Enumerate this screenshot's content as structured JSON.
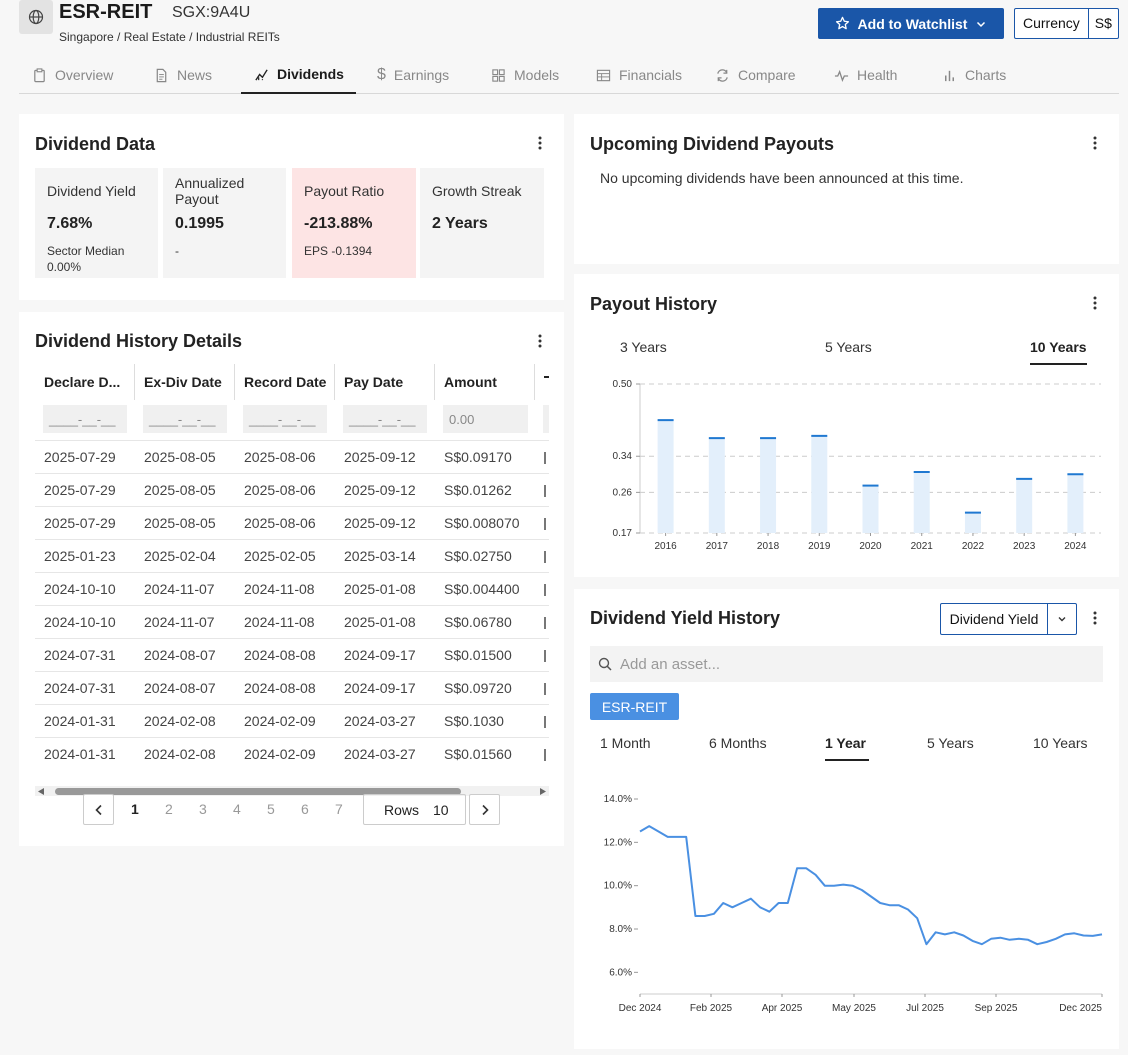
{
  "header": {
    "ticker": "ESR-REIT",
    "exchange": "SGX:9A4U",
    "breadcrumb": "Singapore / Real Estate / Industrial REITs",
    "watchlist_label": "Add to Watchlist",
    "currency_label": "Currency",
    "currency_value": "S$"
  },
  "tabs": [
    {
      "label": "Overview",
      "icon": "clipboard-icon"
    },
    {
      "label": "News",
      "icon": "document-icon"
    },
    {
      "label": "Dividends",
      "icon": "dividends-icon"
    },
    {
      "label": "Earnings",
      "icon": "dollar-icon"
    },
    {
      "label": "Models",
      "icon": "grid-icon"
    },
    {
      "label": "Financials",
      "icon": "table-icon"
    },
    {
      "label": "Compare",
      "icon": "compare-icon"
    },
    {
      "label": "Health",
      "icon": "pulse-icon"
    },
    {
      "label": "Charts",
      "icon": "bar-chart-icon"
    }
  ],
  "dividend_data": {
    "title": "Dividend Data",
    "tiles": [
      {
        "label": "Dividend Yield",
        "value": "7.68%",
        "sub": "Sector Median 0.00%"
      },
      {
        "label": "Annualized Payout",
        "value": "0.1995",
        "sub": "-"
      },
      {
        "label": "Payout Ratio",
        "value": "-213.88%",
        "sub": "EPS -0.1394"
      },
      {
        "label": "Growth Streak",
        "value": "2 Years",
        "sub": ""
      }
    ]
  },
  "history_details": {
    "title": "Dividend History Details",
    "columns": [
      "Declare D...",
      "Ex-Div Date",
      "Record Date",
      "Pay Date",
      "Amount"
    ],
    "filters": [
      "____-__-__",
      "____-__-__",
      "____-__-__",
      "____-__-__",
      "0.00"
    ],
    "rows": [
      [
        "2025-07-29",
        "2025-08-05",
        "2025-08-06",
        "2025-09-12",
        "S$0.09170"
      ],
      [
        "2025-07-29",
        "2025-08-05",
        "2025-08-06",
        "2025-09-12",
        "S$0.01262"
      ],
      [
        "2025-07-29",
        "2025-08-05",
        "2025-08-06",
        "2025-09-12",
        "S$0.008070"
      ],
      [
        "2025-01-23",
        "2025-02-04",
        "2025-02-05",
        "2025-03-14",
        "S$0.02750"
      ],
      [
        "2024-10-10",
        "2024-11-07",
        "2024-11-08",
        "2025-01-08",
        "S$0.004400"
      ],
      [
        "2024-10-10",
        "2024-11-07",
        "2024-11-08",
        "2025-01-08",
        "S$0.06780"
      ],
      [
        "2024-07-31",
        "2024-08-07",
        "2024-08-08",
        "2024-09-17",
        "S$0.01500"
      ],
      [
        "2024-07-31",
        "2024-08-07",
        "2024-08-08",
        "2024-09-17",
        "S$0.09720"
      ],
      [
        "2024-01-31",
        "2024-02-08",
        "2024-02-09",
        "2024-03-27",
        "S$0.1030"
      ],
      [
        "2024-01-31",
        "2024-02-08",
        "2024-02-09",
        "2024-03-27",
        "S$0.01560"
      ]
    ],
    "pages": [
      "1",
      "2",
      "3",
      "4",
      "5",
      "6",
      "7"
    ],
    "current_page": "1",
    "rows_label": "Rows",
    "rows_value": "10"
  },
  "upcoming": {
    "title": "Upcoming Dividend Payouts",
    "message": "No upcoming dividends have been announced at this time."
  },
  "payout_history": {
    "title": "Payout History",
    "ranges": [
      "3 Years",
      "5 Years",
      "10 Years"
    ],
    "active_range": "10 Years"
  },
  "yield_history": {
    "title": "Dividend Yield History",
    "dropdown": "Dividend Yield",
    "search_placeholder": "Add an asset...",
    "asset_chip": "ESR-REIT",
    "ranges": [
      "1 Month",
      "6 Months",
      "1 Year",
      "5 Years",
      "10 Years"
    ],
    "active_range": "1 Year"
  },
  "colors": {
    "primary": "#1a56a8",
    "bar": "#1f78d1",
    "bar_fill": "#e3effb",
    "line": "#4a90e2",
    "chip": "#4a90e2",
    "payout_tile": "#fde4e4"
  },
  "chart_data": [
    {
      "type": "bar",
      "categories": [
        "2016",
        "2017",
        "2018",
        "2019",
        "2020",
        "2021",
        "2022",
        "2023",
        "2024"
      ],
      "values": [
        0.42,
        0.38,
        0.38,
        0.385,
        0.275,
        0.305,
        0.215,
        0.29,
        0.3
      ],
      "yticks": [
        "0.50",
        "0.34",
        "0.26",
        "0.17"
      ],
      "ylim": [
        0.17,
        0.5
      ],
      "grid": true
    },
    {
      "type": "line",
      "xticks": [
        "Dec 2024",
        "Feb 2025",
        "Apr 2025",
        "May 2025",
        "Jul 2025",
        "Sep 2025",
        "Dec 2025"
      ],
      "yticks": [
        "14.0%",
        "12.0%",
        "10.0%",
        "8.0%",
        "6.0%"
      ],
      "ylim": [
        5.0,
        14.0
      ],
      "values": [
        12.5,
        12.75,
        12.5,
        12.25,
        12.25,
        12.25,
        8.6,
        8.6,
        8.7,
        9.2,
        9.0,
        9.2,
        9.4,
        9.0,
        8.8,
        9.2,
        9.2,
        10.8,
        10.8,
        10.5,
        10.0,
        10.0,
        10.05,
        10.0,
        9.8,
        9.5,
        9.2,
        9.1,
        9.1,
        8.9,
        8.5,
        7.3,
        7.85,
        7.75,
        7.85,
        7.7,
        7.45,
        7.3,
        7.55,
        7.6,
        7.5,
        7.55,
        7.5,
        7.3,
        7.4,
        7.55,
        7.75,
        7.8,
        7.7,
        7.68,
        7.75
      ]
    }
  ]
}
